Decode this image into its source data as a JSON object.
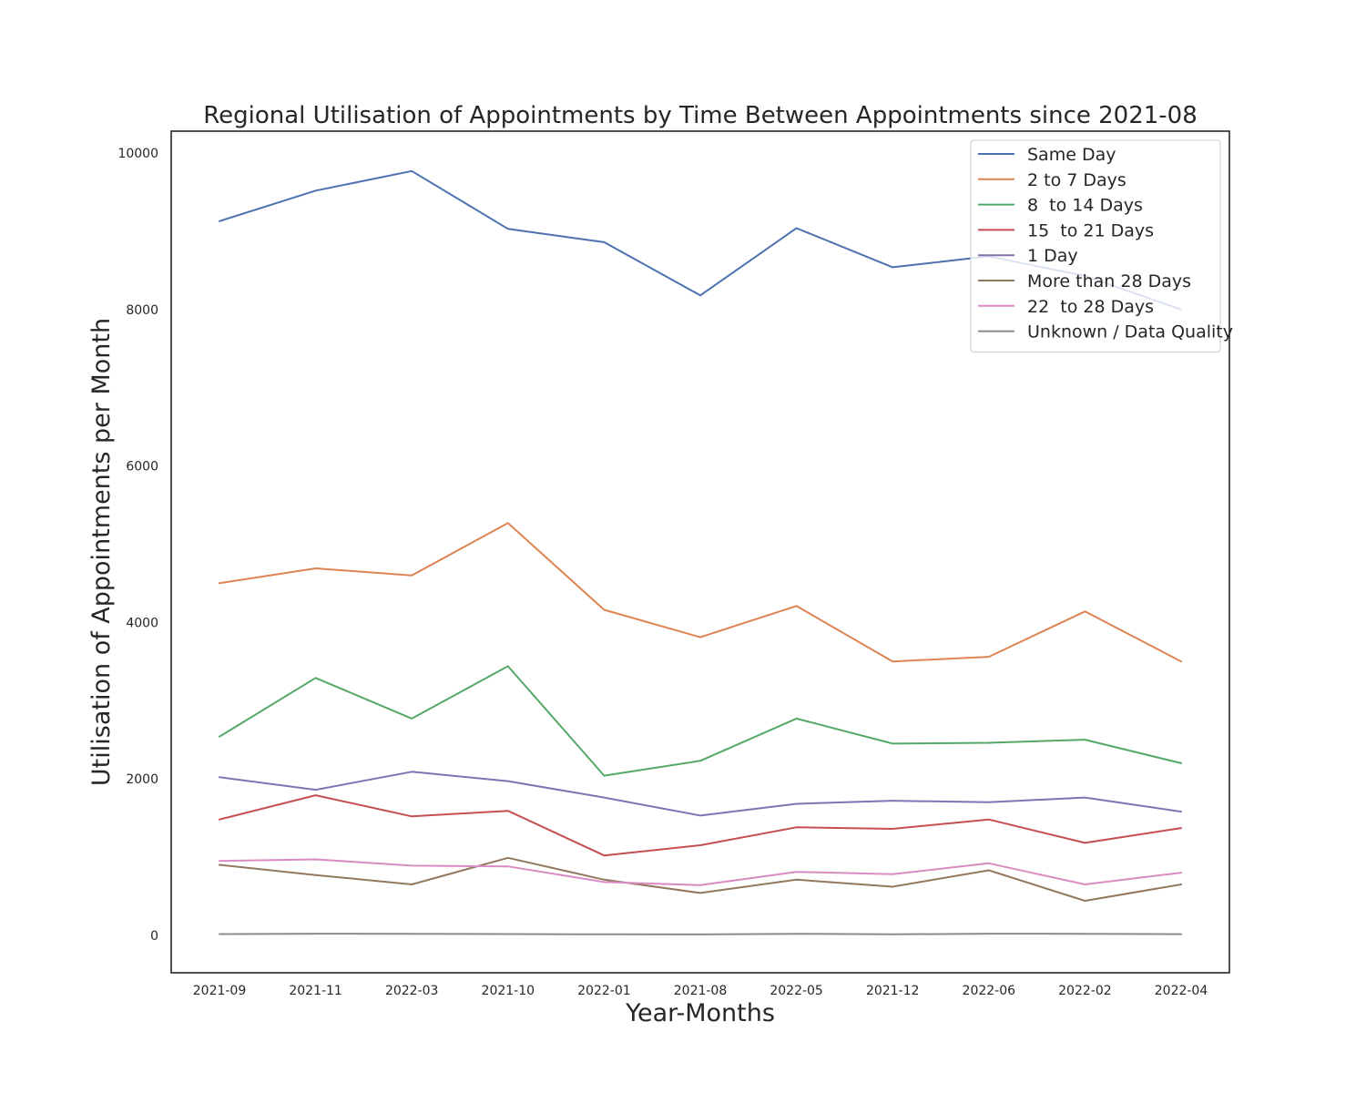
{
  "chart_data": {
    "type": "line",
    "title": "Regional Utilisation of Appointments by Time Between Appointments since 2021-08",
    "xlabel": "Year-Months",
    "ylabel": "Utilisation of Appointments per Month",
    "categories": [
      "2021-09",
      "2021-11",
      "2022-03",
      "2021-10",
      "2022-01",
      "2021-08",
      "2022-05",
      "2021-12",
      "2022-06",
      "2022-02",
      "2022-04"
    ],
    "ylim": [
      -480,
      10280
    ],
    "yticks": [
      0,
      2000,
      4000,
      6000,
      8000,
      10000
    ],
    "grid": false,
    "legend": "top-right",
    "series": [
      {
        "name": "Same Day",
        "color": "#4c72b0",
        "values": [
          9130,
          9520,
          9770,
          9030,
          8860,
          8180,
          9040,
          8540,
          8680,
          8430,
          8000
        ]
      },
      {
        "name": "2 to 7 Days",
        "color": "#dd8452",
        "values": [
          4500,
          4690,
          4600,
          5270,
          4160,
          3810,
          4210,
          3500,
          3560,
          4140,
          3500
        ]
      },
      {
        "name": "8  to 14 Days",
        "color": "#55a868",
        "values": [
          2540,
          3290,
          2770,
          3440,
          2040,
          2230,
          2770,
          2450,
          2460,
          2500,
          2200
        ]
      },
      {
        "name": "15  to 21 Days",
        "color": "#c44e52",
        "values": [
          1480,
          1790,
          1520,
          1590,
          1020,
          1150,
          1380,
          1360,
          1480,
          1180,
          1370
        ]
      },
      {
        "name": "1 Day",
        "color": "#8172b3",
        "values": [
          2020,
          1860,
          2090,
          1970,
          1760,
          1530,
          1680,
          1720,
          1700,
          1760,
          1580
        ]
      },
      {
        "name": "More than 28 Days",
        "color": "#937860",
        "values": [
          900,
          770,
          650,
          990,
          710,
          540,
          710,
          620,
          830,
          440,
          650
        ]
      },
      {
        "name": "22  to 28 Days",
        "color": "#da8bc3",
        "values": [
          950,
          970,
          890,
          880,
          680,
          640,
          810,
          780,
          920,
          650,
          800
        ]
      },
      {
        "name": "Unknown / Data Quality",
        "color": "#8c8c8c",
        "values": [
          15,
          20,
          18,
          15,
          12,
          10,
          18,
          12,
          20,
          18,
          14
        ]
      }
    ]
  }
}
